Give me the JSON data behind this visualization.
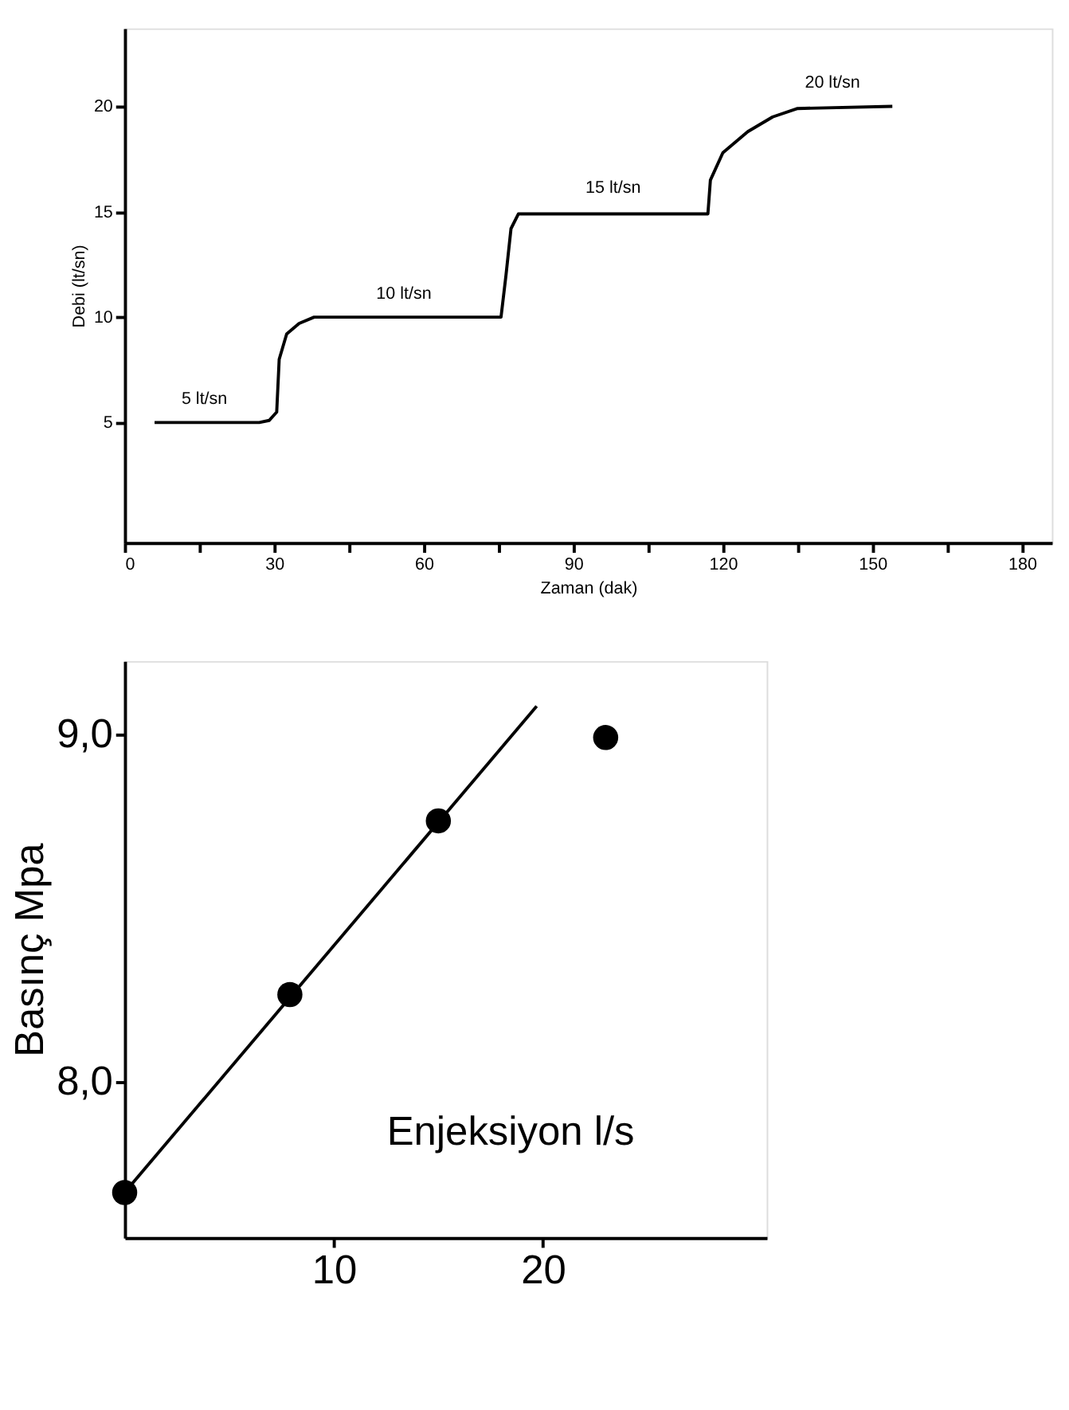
{
  "chart_data": [
    {
      "type": "line",
      "xlabel": "Zaman (dak)",
      "ylabel": "Debi (lt/sn)",
      "xlim": [
        0,
        186
      ],
      "ylim": [
        -0.7,
        23.7
      ],
      "xticks": [
        0,
        {
          "value": 15,
          "label": null
        },
        30,
        {
          "value": 45,
          "label": null
        },
        60,
        {
          "value": 75,
          "label": null
        },
        90,
        {
          "value": 105,
          "label": null
        },
        120,
        {
          "value": 135,
          "label": null
        },
        150,
        {
          "value": 165,
          "label": null
        },
        180
      ],
      "yticks": [
        5,
        10,
        15,
        20
      ],
      "grid": false,
      "marker": "none",
      "line_style": "solid",
      "x": [
        6,
        27,
        29,
        30.5,
        31,
        32.5,
        35,
        38,
        75.5,
        76.5,
        77.5,
        79,
        117,
        117.5,
        120,
        125,
        130,
        135,
        154
      ],
      "series": [
        {
          "color": "#000000",
          "values": [
            5,
            5,
            5.1,
            5.5,
            8,
            9.2,
            9.7,
            10,
            10,
            12,
            14.2,
            14.9,
            14.9,
            16.5,
            17.8,
            18.8,
            19.5,
            19.9,
            20
          ]
        }
      ],
      "annotations": [
        {
          "text": "5 lt/sn",
          "x": 16,
          "y": 5
        },
        {
          "text": "10 lt/sn",
          "x": 56,
          "y": 10
        },
        {
          "text": "15 lt/sn",
          "x": 98,
          "y": 15
        },
        {
          "text": "20 lt/sn",
          "x": 142,
          "y": 20
        }
      ]
    },
    {
      "type": "scatter",
      "xlabel": "Enjeksiyon l/s",
      "ylabel": "Basınç Mpa",
      "xlim": [
        0,
        30.7
      ],
      "ylim": [
        7.55,
        9.21
      ],
      "xticks": [
        10,
        20
      ],
      "yticks": [
        {
          "value": 9,
          "label": "9,0"
        },
        {
          "value": 8,
          "label": "8,0"
        }
      ],
      "grid": false,
      "series": [
        {
          "type": "scatter",
          "marker": "circle",
          "color": "#000000",
          "x": [
            0,
            7.9,
            15,
            23
          ],
          "values": [
            7.68,
            8.25,
            8.75,
            8.99
          ]
        },
        {
          "type": "line",
          "marker": "none",
          "line_style": "solid",
          "color": "#000000",
          "x": [
            0,
            19.7
          ],
          "values": [
            7.68,
            9.08
          ]
        }
      ]
    }
  ]
}
